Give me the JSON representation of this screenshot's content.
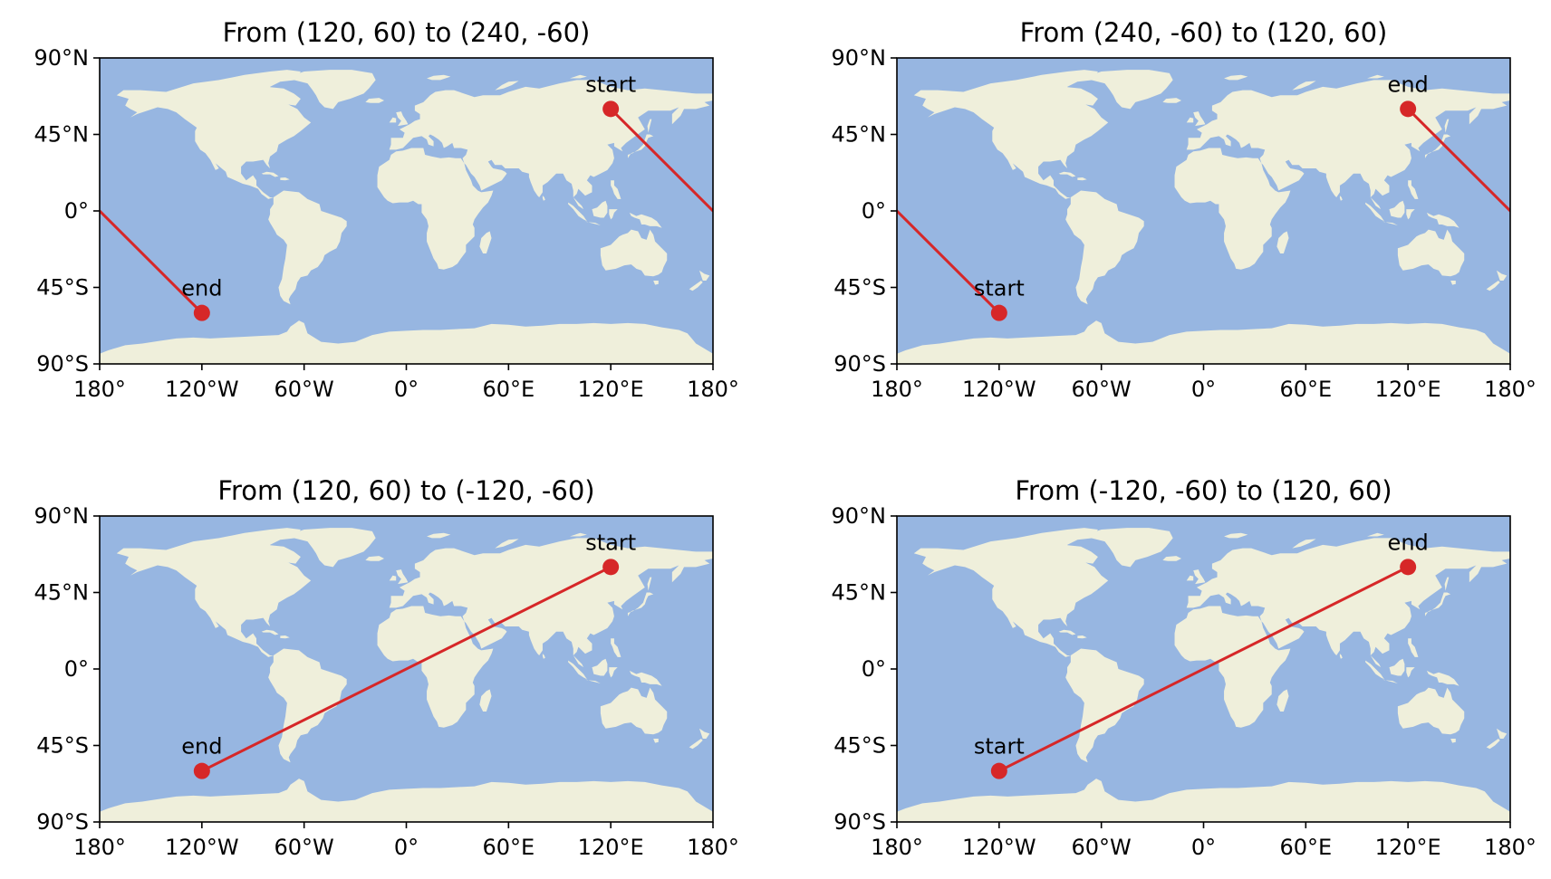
{
  "colors": {
    "ocean": "#97b6e1",
    "land": "#efefdb",
    "route": "#d62728",
    "frame": "#000000"
  },
  "lon_ticks": [
    "180°",
    "120°W",
    "60°W",
    "0°",
    "60°E",
    "120°E",
    "180°"
  ],
  "lat_ticks": [
    "90°N",
    "45°N",
    "0°",
    "45°S",
    "90°S"
  ],
  "panels": [
    {
      "title": "From (120, 60) to (240, -60)",
      "start": {
        "lon": 120,
        "lat": 60,
        "label": "start"
      },
      "end": {
        "lon": -120,
        "lat": -60,
        "label": "end"
      },
      "route": "wrap"
    },
    {
      "title": "From (240, -60) to (120, 60)",
      "start": {
        "lon": -120,
        "lat": -60,
        "label": "start"
      },
      "end": {
        "lon": 120,
        "lat": 60,
        "label": "end"
      },
      "route": "wrap"
    },
    {
      "title": "From (120, 60) to (-120, -60)",
      "start": {
        "lon": 120,
        "lat": 60,
        "label": "start"
      },
      "end": {
        "lon": -120,
        "lat": -60,
        "label": "end"
      },
      "route": "direct"
    },
    {
      "title": "From (-120, -60) to (120, 60)",
      "start": {
        "lon": -120,
        "lat": -60,
        "label": "start"
      },
      "end": {
        "lon": 120,
        "lat": 60,
        "label": "end"
      },
      "route": "direct"
    }
  ]
}
